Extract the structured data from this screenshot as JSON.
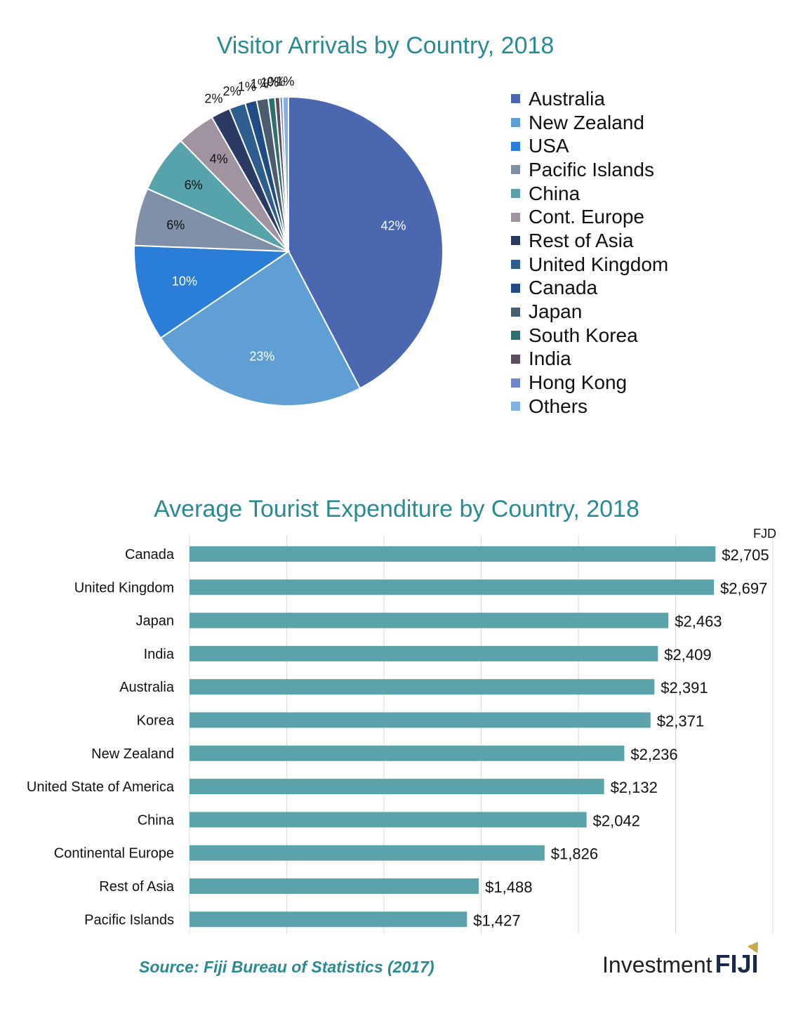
{
  "chart_data": [
    {
      "type": "pie",
      "title": "Visitor Arrivals by Country, 2018",
      "slices": [
        {
          "label": "Australia",
          "value": 42,
          "display": "42%",
          "color": "#4a67af"
        },
        {
          "label": "New Zealand",
          "value": 23,
          "display": "23%",
          "color": "#5f9fd3"
        },
        {
          "label": "USA",
          "value": 10,
          "display": "10%",
          "color": "#2b7ed8"
        },
        {
          "label": "Pacific Islands",
          "value": 6,
          "display": "6%",
          "color": "#7f90a8"
        },
        {
          "label": "China",
          "value": 6,
          "display": "6%",
          "color": "#57a3ab"
        },
        {
          "label": "Cont. Europe",
          "value": 4,
          "display": "4%",
          "color": "#a293a0"
        },
        {
          "label": "Rest of Asia",
          "value": 2,
          "display": "2%",
          "color": "#2a3a62"
        },
        {
          "label": "United Kingdom",
          "value": 1.7,
          "display": "2%",
          "color": "#2d5e8e"
        },
        {
          "label": "Canada",
          "value": 1.2,
          "display": "1%",
          "color": "#1f4c84"
        },
        {
          "label": "Japan",
          "value": 1.2,
          "display": "1%",
          "color": "#4b5c6f"
        },
        {
          "label": "South Korea",
          "value": 0.7,
          "display": "1%",
          "color": "#2f6f6f"
        },
        {
          "label": "India",
          "value": 0.5,
          "display": "0%",
          "color": "#5b4d5d"
        },
        {
          "label": "Hong Kong",
          "value": 0.3,
          "display": "",
          "color": "#6f86c8"
        },
        {
          "label": "Others",
          "value": 0.6,
          "display": "1%",
          "color": "#7fb2e0"
        }
      ],
      "legend_position": "right"
    },
    {
      "type": "bar",
      "orientation": "horizontal",
      "title": "Average Tourist Expenditure by Country, 2018",
      "unit_label": "FJD",
      "categories": [
        "Canada",
        "United Kingdom",
        "Japan",
        "India",
        "Australia",
        "Korea",
        "New Zealand",
        "United State of America",
        "China",
        "Continental Europe",
        "Rest of Asia",
        "Pacific Islands"
      ],
      "values": [
        2705,
        2697,
        2463,
        2409,
        2391,
        2371,
        2236,
        2132,
        2042,
        1826,
        1488,
        1427
      ],
      "value_labels": [
        "$2,705",
        "$2,697",
        "$2,463",
        "$2,409",
        "$2,391",
        "$2,371",
        "$2,236",
        "$2,132",
        "$2,042",
        "$1,826",
        "$1,488",
        "$1,427"
      ],
      "xlim": [
        0,
        3000
      ],
      "grid": true,
      "bar_color": "#5ba3ab"
    }
  ],
  "footer": {
    "source": "Source: Fiji Bureau of Statistics (2017)",
    "logo_text_a": "Investment",
    "logo_text_b": "FIJI"
  }
}
